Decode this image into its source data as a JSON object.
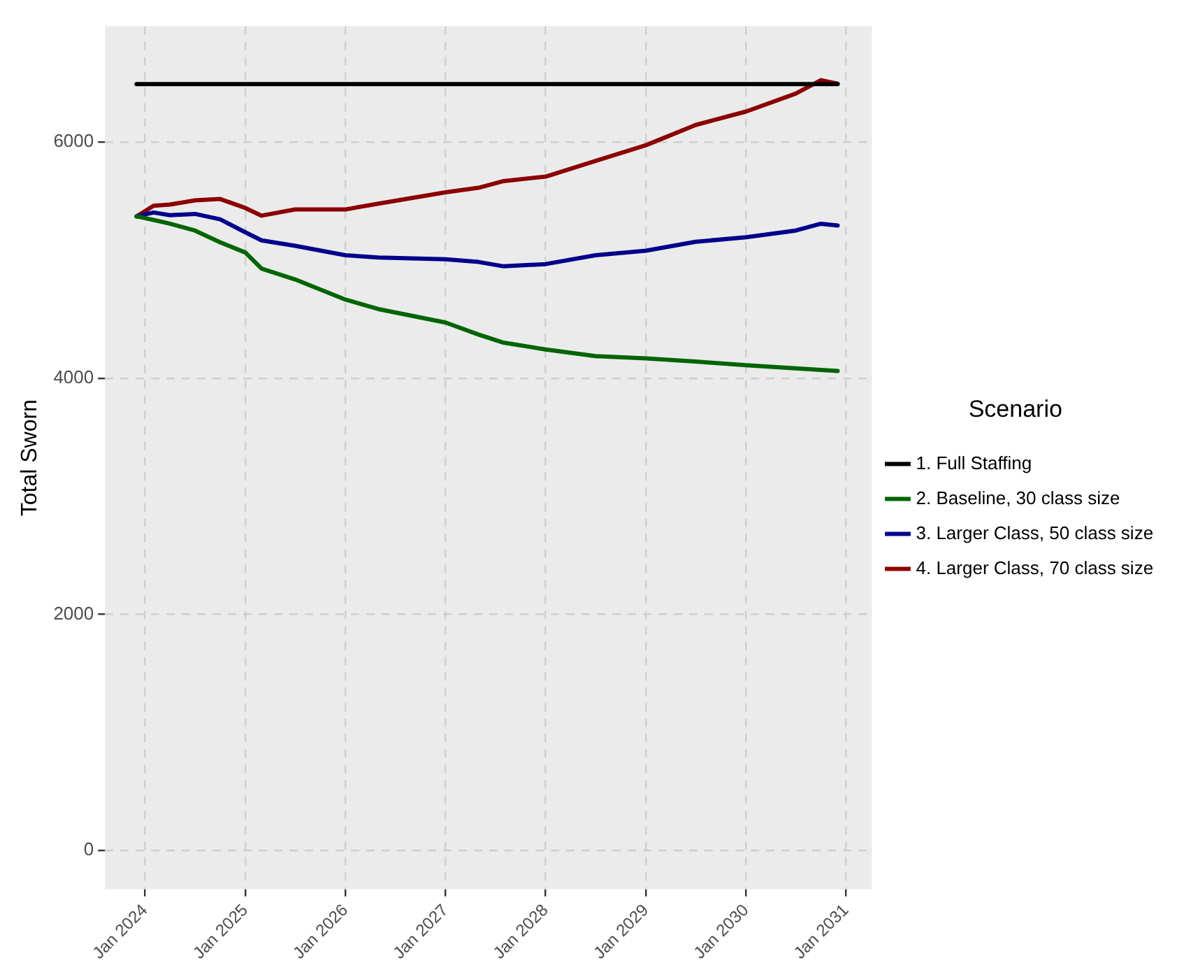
{
  "chart_data": {
    "type": "line",
    "ylabel": "Total Sworn",
    "legend_title": "Scenario",
    "legend": "right",
    "grid": true,
    "marker": "none",
    "line_style": "solid",
    "xlim": [
      "2023-08-08",
      "2031-04-05"
    ],
    "ylim": [
      -330,
      6980
    ],
    "xticks": [
      {
        "value": "2024-01",
        "label": "Jan 2024"
      },
      {
        "value": "2025-01",
        "label": "Jan 2025"
      },
      {
        "value": "2026-01",
        "label": "Jan 2026"
      },
      {
        "value": "2027-01",
        "label": "Jan 2027"
      },
      {
        "value": "2028-01",
        "label": "Jan 2028"
      },
      {
        "value": "2029-01",
        "label": "Jan 2029"
      },
      {
        "value": "2030-01",
        "label": "Jan 2030"
      },
      {
        "value": "2031-01",
        "label": "Jan 2031"
      }
    ],
    "yticks": [
      0,
      2000,
      4000,
      6000
    ],
    "x": [
      "2023-12",
      "2024-02",
      "2024-04",
      "2024-07",
      "2024-10",
      "2025-01",
      "2025-03",
      "2025-07",
      "2026-01",
      "2026-05",
      "2027-01",
      "2027-05",
      "2027-08",
      "2028-01",
      "2028-07",
      "2029-01",
      "2029-07",
      "2030-01",
      "2030-07",
      "2030-10",
      "2030-12"
    ],
    "series": [
      {
        "name": "1. Full Staffing",
        "color": "#000000",
        "x": [
          "2023-12",
          "2030-12"
        ],
        "values": [
          6490,
          6490
        ]
      },
      {
        "name": "2. Baseline, 30 class size",
        "color": "#006400",
        "values": [
          5370,
          5340,
          5308,
          5250,
          5150,
          5064,
          4927,
          4836,
          4665,
          4585,
          4471,
          4369,
          4300,
          4243,
          4186,
          4167,
          4140,
          4110,
          4083,
          4070,
          4060
        ]
      },
      {
        "name": "3. Larger Class, 50 class size",
        "color": "#00008b",
        "values": [
          5370,
          5403,
          5380,
          5391,
          5345,
          5235,
          5167,
          5121,
          5041,
          5022,
          5007,
          4984,
          4947,
          4966,
          5041,
          5079,
          5155,
          5193,
          5250,
          5308,
          5292
        ]
      },
      {
        "name": "4. Larger Class, 70 class size",
        "color": "#8b0000",
        "values": [
          5370,
          5460,
          5470,
          5506,
          5517,
          5441,
          5376,
          5429,
          5429,
          5478,
          5574,
          5612,
          5669,
          5707,
          5840,
          5973,
          6144,
          6258,
          6410,
          6524,
          6494
        ]
      }
    ]
  }
}
